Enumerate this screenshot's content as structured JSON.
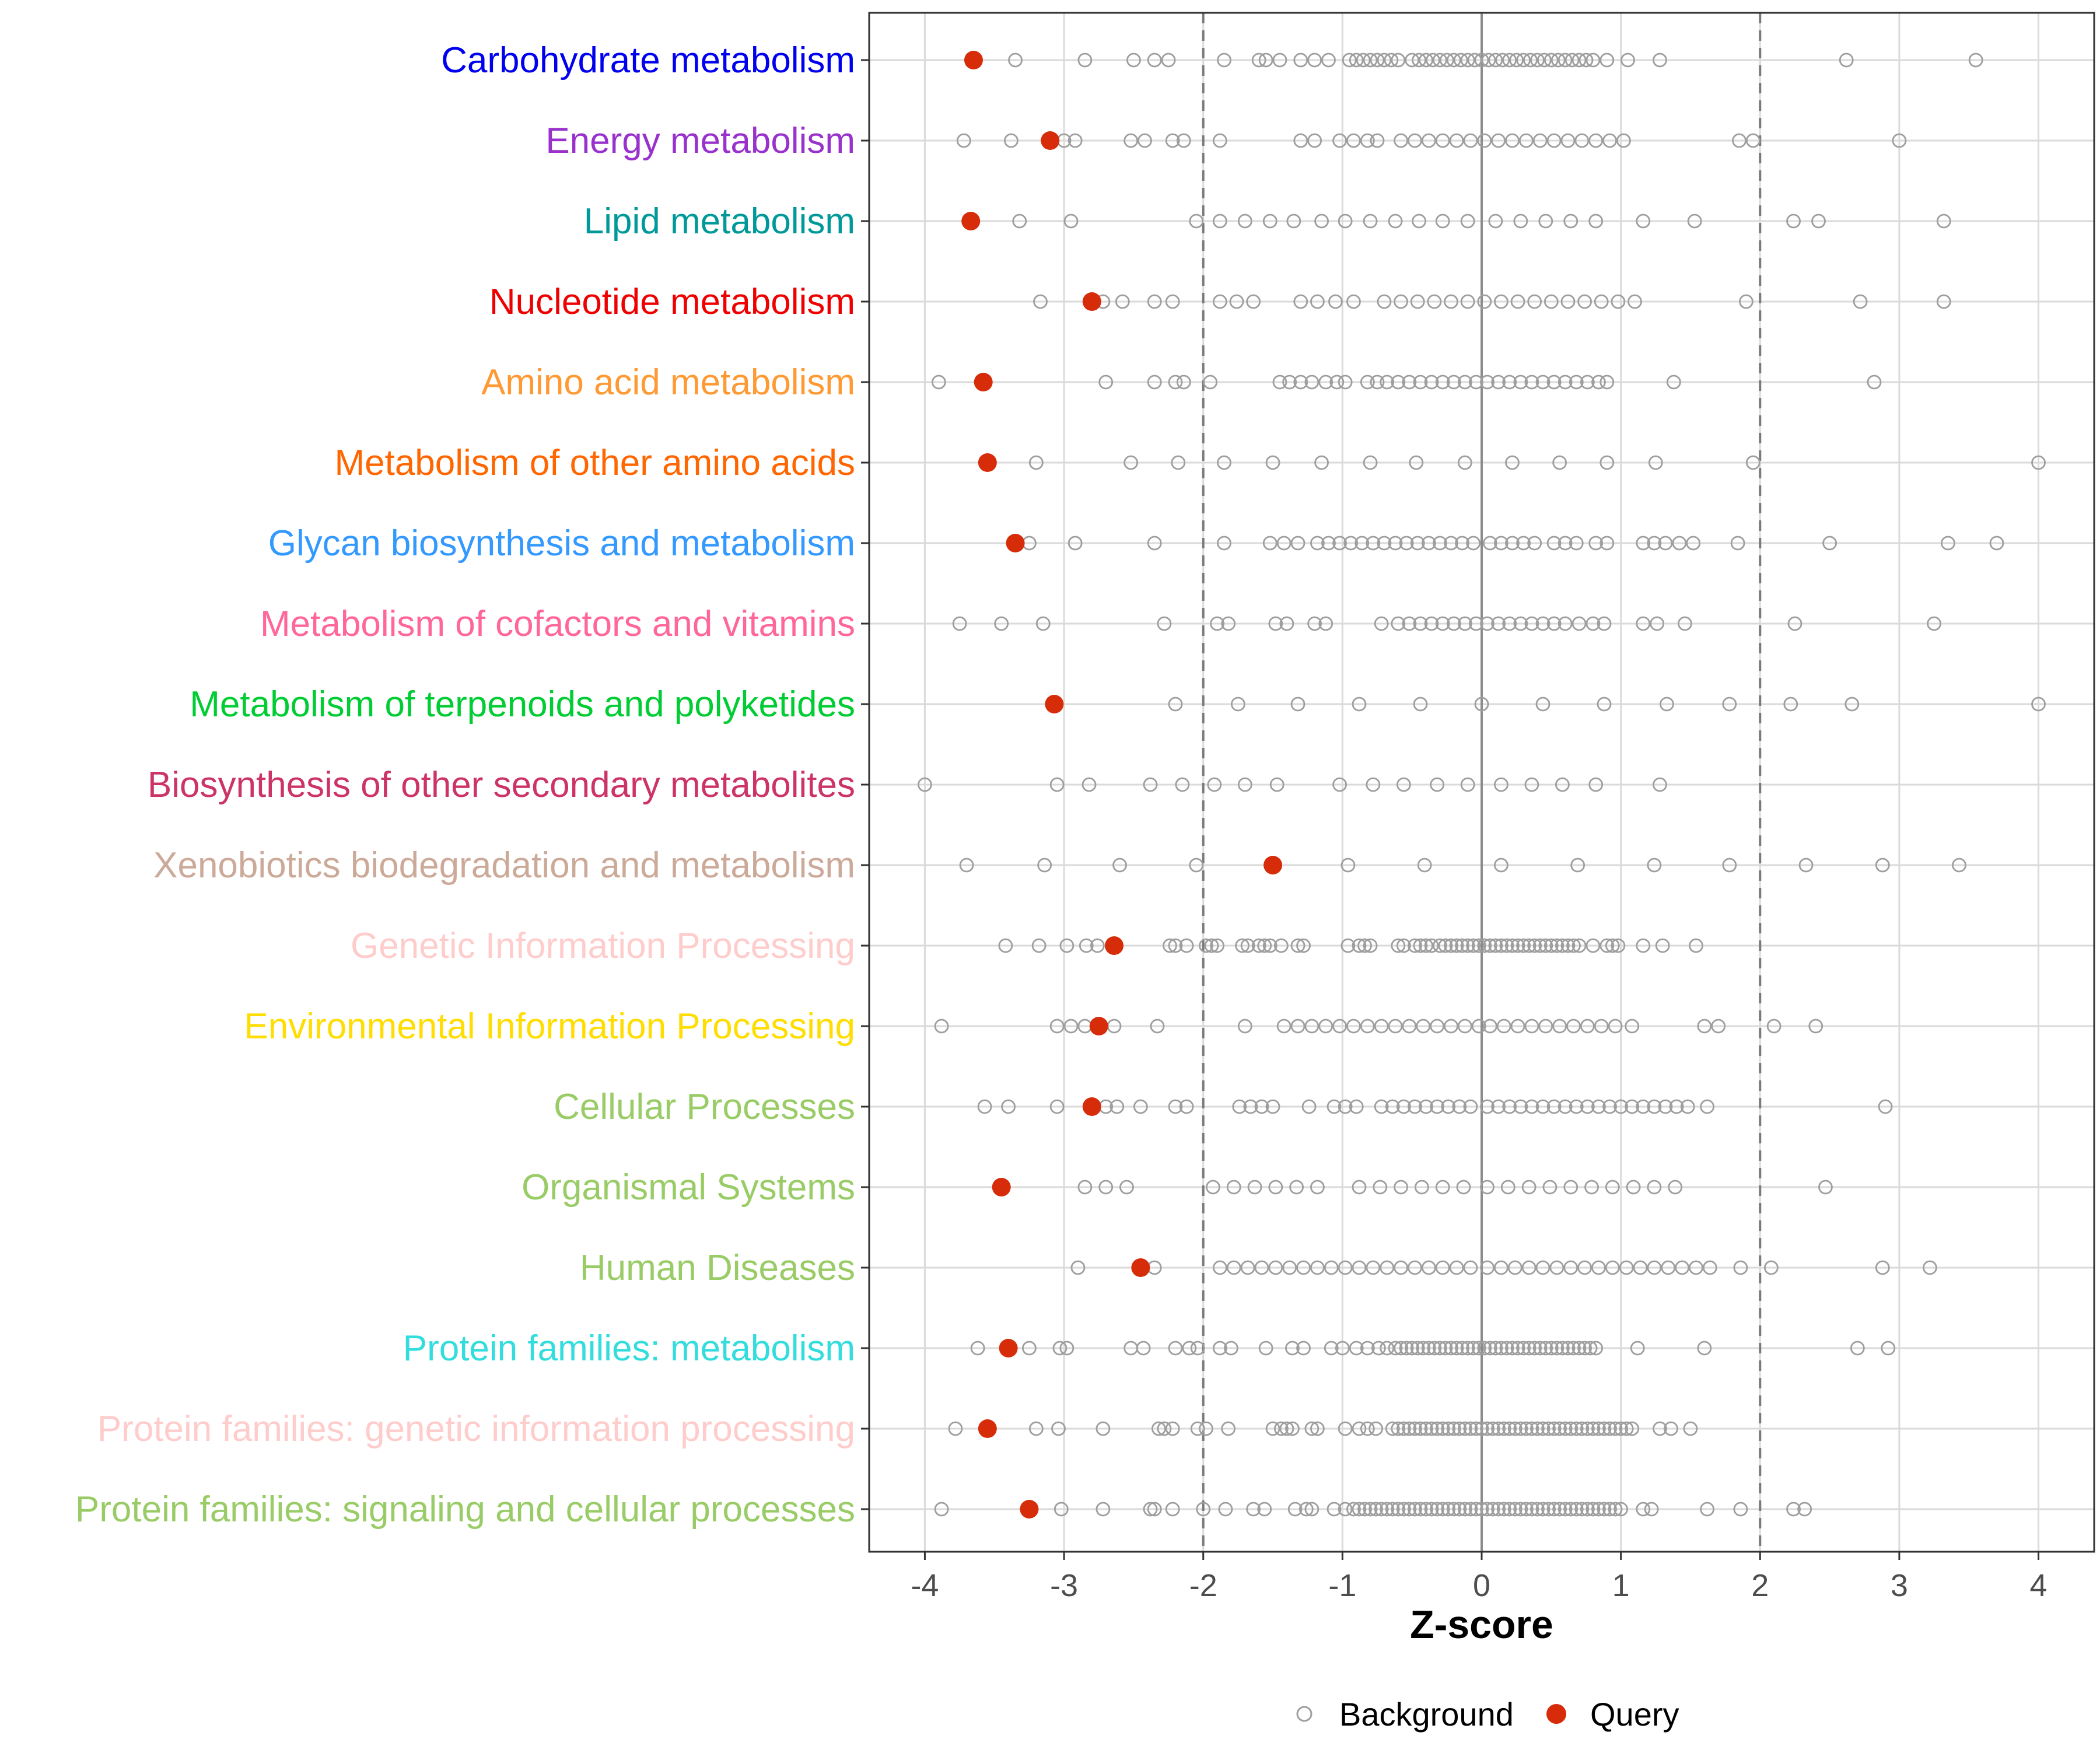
{
  "chart_data": {
    "type": "scatter",
    "xlabel": "Z-score",
    "xlim": [
      -4.4,
      4.4
    ],
    "xticks": [
      -4,
      -3,
      -2,
      -1,
      0,
      1,
      2,
      3,
      4
    ],
    "xtick_labels": [
      "-4",
      "-3",
      "-2",
      "-1",
      "0",
      "1",
      "2",
      "3",
      "4"
    ],
    "reference_lines": [
      {
        "x": -2,
        "style": "dashed"
      },
      {
        "x": 2,
        "style": "dashed"
      },
      {
        "x": 0,
        "style": "solid"
      }
    ],
    "legend": {
      "position": "bottom",
      "entries": [
        {
          "name": "Background",
          "color": "#9e9e9e",
          "marker": "open-circle"
        },
        {
          "name": "Query",
          "color": "#d62c0a",
          "marker": "filled-circle"
        }
      ]
    },
    "categories": [
      {
        "label": "Carbohydrate metabolism",
        "color": "#0000ee",
        "query": -3.65,
        "background": [
          -3.35,
          -2.85,
          -2.5,
          -2.35,
          -2.25,
          -1.85,
          -1.6,
          -1.55,
          -1.45,
          -1.3,
          -1.2,
          -1.1,
          -0.95,
          -0.9,
          -0.85,
          -0.8,
          -0.75,
          -0.7,
          -0.65,
          -0.6,
          -0.5,
          -0.45,
          -0.4,
          -0.35,
          -0.3,
          -0.25,
          -0.2,
          -0.15,
          -0.1,
          -0.05,
          0,
          0.05,
          0.1,
          0.15,
          0.2,
          0.25,
          0.3,
          0.35,
          0.4,
          0.45,
          0.5,
          0.55,
          0.6,
          0.65,
          0.7,
          0.75,
          0.8,
          0.9,
          1.05,
          1.28,
          2.62,
          3.55
        ]
      },
      {
        "label": "Energy metabolism",
        "color": "#9932cc",
        "query": -3.1,
        "background": [
          -3.72,
          -3.38,
          -3.0,
          -2.92,
          -2.52,
          -2.42,
          -2.22,
          -2.14,
          -1.88,
          -1.3,
          -1.2,
          -1.02,
          -0.92,
          -0.82,
          -0.75,
          -0.58,
          -0.48,
          -0.38,
          -0.28,
          -0.18,
          -0.08,
          0.02,
          0.12,
          0.22,
          0.32,
          0.42,
          0.52,
          0.62,
          0.72,
          0.82,
          0.92,
          1.02,
          1.85,
          1.95,
          3.0
        ]
      },
      {
        "label": "Lipid metabolism",
        "color": "#009999",
        "query": -3.67,
        "background": [
          -3.32,
          -2.95,
          -2.05,
          -1.88,
          -1.7,
          -1.52,
          -1.35,
          -1.15,
          -0.98,
          -0.8,
          -0.62,
          -0.45,
          -0.28,
          -0.1,
          0.1,
          0.28,
          0.46,
          0.64,
          0.82,
          1.16,
          1.53,
          2.24,
          2.42,
          3.32
        ]
      },
      {
        "label": "Nucleotide metabolism",
        "color": "#ee0000",
        "query": -2.8,
        "background": [
          -3.17,
          -2.72,
          -2.58,
          -2.35,
          -2.22,
          -1.88,
          -1.76,
          -1.64,
          -1.3,
          -1.18,
          -1.05,
          -0.92,
          -0.7,
          -0.58,
          -0.46,
          -0.34,
          -0.22,
          -0.1,
          0.02,
          0.14,
          0.26,
          0.38,
          0.5,
          0.62,
          0.74,
          0.86,
          0.98,
          1.1,
          1.9,
          2.72,
          3.32
        ]
      },
      {
        "label": "Amino acid metabolism",
        "color": "#ff9933",
        "query": -3.58,
        "background": [
          -3.9,
          -2.7,
          -2.35,
          -2.2,
          -2.14,
          -1.95,
          -1.45,
          -1.38,
          -1.3,
          -1.22,
          -1.12,
          -1.04,
          -0.98,
          -0.82,
          -0.75,
          -0.68,
          -0.6,
          -0.52,
          -0.44,
          -0.36,
          -0.28,
          -0.2,
          -0.12,
          -0.04,
          0.04,
          0.12,
          0.2,
          0.28,
          0.36,
          0.44,
          0.52,
          0.6,
          0.68,
          0.76,
          0.84,
          0.9,
          1.38,
          2.82
        ]
      },
      {
        "label": "Metabolism of other amino acids",
        "color": "#ff6600",
        "query": -3.55,
        "background": [
          -3.2,
          -2.52,
          -2.18,
          -1.85,
          -1.5,
          -1.15,
          -0.8,
          -0.47,
          -0.12,
          0.22,
          0.56,
          0.9,
          1.25,
          1.95,
          4.0
        ]
      },
      {
        "label": "Glycan biosynthesis and metabolism",
        "color": "#3399ff",
        "query": -3.35,
        "background": [
          -3.25,
          -2.92,
          -2.35,
          -1.85,
          -1.52,
          -1.42,
          -1.32,
          -1.18,
          -1.1,
          -1.02,
          -0.94,
          -0.86,
          -0.78,
          -0.7,
          -0.62,
          -0.54,
          -0.46,
          -0.38,
          -0.3,
          -0.22,
          -0.14,
          -0.06,
          0.06,
          0.14,
          0.22,
          0.3,
          0.38,
          0.52,
          0.6,
          0.68,
          0.82,
          0.9,
          1.16,
          1.24,
          1.32,
          1.42,
          1.52,
          1.84,
          2.5,
          3.35,
          3.7
        ]
      },
      {
        "label": "Metabolism of cofactors and vitamins",
        "color": "#ff6699",
        "query": null,
        "background": [
          -3.75,
          -3.45,
          -3.15,
          -2.28,
          -1.9,
          -1.82,
          -1.48,
          -1.4,
          -1.2,
          -1.12,
          -0.72,
          -0.6,
          -0.52,
          -0.44,
          -0.36,
          -0.28,
          -0.2,
          -0.12,
          -0.04,
          0.04,
          0.12,
          0.2,
          0.28,
          0.36,
          0.44,
          0.52,
          0.6,
          0.7,
          0.8,
          0.88,
          1.16,
          1.26,
          1.46,
          2.25,
          3.25
        ]
      },
      {
        "label": "Metabolism of terpenoids and polyketides",
        "color": "#00cc33",
        "query": -3.07,
        "background": [
          -2.2,
          -1.75,
          -1.32,
          -0.88,
          -0.44,
          0.0,
          0.44,
          0.88,
          1.33,
          1.78,
          2.22,
          2.66,
          4.0
        ]
      },
      {
        "label": "Biosynthesis of other secondary metabolites",
        "color": "#cc3366",
        "query": null,
        "background": [
          -4.0,
          -3.05,
          -2.82,
          -2.38,
          -2.15,
          -1.92,
          -1.7,
          -1.47,
          -1.02,
          -0.78,
          -0.56,
          -0.32,
          -0.1,
          0.14,
          0.36,
          0.58,
          0.82,
          1.28
        ]
      },
      {
        "label": "Xenobiotics biodegradation and metabolism",
        "color": "#ccaa99",
        "query": -1.5,
        "background": [
          -3.7,
          -3.14,
          -2.6,
          -2.05,
          -0.96,
          -0.41,
          0.14,
          0.69,
          1.24,
          1.78,
          2.33,
          2.88,
          3.43
        ]
      },
      {
        "label": "Genetic Information Processing",
        "color": "#ffcccc",
        "query": -2.64,
        "background": [
          -3.42,
          -3.18,
          -2.98,
          -2.84,
          -2.76,
          -2.24,
          -2.2,
          -2.12,
          -1.98,
          -1.94,
          -1.9,
          -1.72,
          -1.68,
          -1.6,
          -1.56,
          -1.52,
          -1.44,
          -1.32,
          -1.28,
          -0.96,
          -0.88,
          -0.84,
          -0.8,
          -0.6,
          -0.56,
          -0.48,
          -0.44,
          -0.4,
          -0.36,
          -0.3,
          -0.26,
          -0.22,
          -0.18,
          -0.14,
          -0.1,
          -0.06,
          -0.02,
          0.02,
          0.06,
          0.1,
          0.14,
          0.18,
          0.22,
          0.26,
          0.3,
          0.34,
          0.38,
          0.42,
          0.46,
          0.5,
          0.54,
          0.58,
          0.62,
          0.66,
          0.7,
          0.8,
          0.9,
          0.94,
          0.98,
          1.16,
          1.3,
          1.54
        ]
      },
      {
        "label": "Environmental Information Processing",
        "color": "#ffdd00",
        "query": -2.75,
        "background": [
          -3.88,
          -3.05,
          -2.95,
          -2.85,
          -2.64,
          -2.33,
          -1.7,
          -1.42,
          -1.32,
          -1.22,
          -1.12,
          -1.02,
          -0.92,
          -0.82,
          -0.72,
          -0.62,
          -0.52,
          -0.42,
          -0.32,
          -0.22,
          -0.12,
          -0.02,
          0.06,
          0.16,
          0.26,
          0.36,
          0.46,
          0.56,
          0.66,
          0.76,
          0.86,
          0.96,
          1.08,
          1.6,
          1.7,
          2.1,
          2.4
        ]
      },
      {
        "label": "Cellular Processes",
        "color": "#99cc66",
        "query": -2.8,
        "background": [
          -3.57,
          -3.4,
          -3.05,
          -2.7,
          -2.62,
          -2.45,
          -2.2,
          -2.12,
          -1.74,
          -1.66,
          -1.58,
          -1.5,
          -1.24,
          -1.06,
          -0.98,
          -0.9,
          -0.72,
          -0.64,
          -0.56,
          -0.48,
          -0.4,
          -0.32,
          -0.24,
          -0.16,
          -0.08,
          0.04,
          0.12,
          0.2,
          0.28,
          0.36,
          0.44,
          0.52,
          0.6,
          0.68,
          0.76,
          0.84,
          0.92,
          1.0,
          1.08,
          1.16,
          1.24,
          1.32,
          1.4,
          1.48,
          1.62,
          2.9
        ]
      },
      {
        "label": "Organismal Systems",
        "color": "#99cc66",
        "query": -3.45,
        "background": [
          -2.85,
          -2.7,
          -2.55,
          -1.93,
          -1.78,
          -1.63,
          -1.48,
          -1.33,
          -1.18,
          -0.88,
          -0.73,
          -0.58,
          -0.43,
          -0.28,
          -0.13,
          0.04,
          0.19,
          0.34,
          0.49,
          0.64,
          0.79,
          0.94,
          1.09,
          1.24,
          1.39,
          2.47
        ]
      },
      {
        "label": "Human Diseases",
        "color": "#99cc66",
        "query": -2.45,
        "background": [
          -2.9,
          -2.35,
          -1.88,
          -1.78,
          -1.68,
          -1.58,
          -1.48,
          -1.38,
          -1.28,
          -1.18,
          -1.08,
          -0.98,
          -0.88,
          -0.78,
          -0.68,
          -0.58,
          -0.48,
          -0.38,
          -0.28,
          -0.18,
          -0.08,
          0.04,
          0.14,
          0.24,
          0.34,
          0.44,
          0.54,
          0.64,
          0.74,
          0.84,
          0.94,
          1.04,
          1.14,
          1.24,
          1.34,
          1.44,
          1.54,
          1.64,
          1.86,
          2.08,
          2.88,
          3.22
        ]
      },
      {
        "label": "Protein families: metabolism",
        "color": "#33dddd",
        "query": -3.4,
        "background": [
          -3.62,
          -3.25,
          -3.03,
          -2.98,
          -2.52,
          -2.43,
          -2.2,
          -2.1,
          -2.04,
          -1.88,
          -1.8,
          -1.55,
          -1.36,
          -1.28,
          -1.08,
          -1.0,
          -0.9,
          -0.82,
          -0.74,
          -0.68,
          -0.62,
          -0.58,
          -0.54,
          -0.5,
          -0.46,
          -0.42,
          -0.38,
          -0.34,
          -0.3,
          -0.26,
          -0.22,
          -0.18,
          -0.14,
          -0.1,
          -0.06,
          -0.02,
          0.02,
          0.06,
          0.1,
          0.14,
          0.18,
          0.22,
          0.26,
          0.3,
          0.34,
          0.38,
          0.42,
          0.46,
          0.5,
          0.54,
          0.58,
          0.62,
          0.66,
          0.7,
          0.74,
          0.78,
          0.82,
          1.12,
          1.6,
          2.7,
          2.92
        ]
      },
      {
        "label": "Protein families: genetic information processing",
        "color": "#ffcccc",
        "query": -3.55,
        "background": [
          -3.78,
          -3.2,
          -3.04,
          -2.72,
          -2.32,
          -2.28,
          -2.22,
          -2.04,
          -1.98,
          -1.82,
          -1.5,
          -1.44,
          -1.4,
          -1.36,
          -1.22,
          -1.18,
          -0.98,
          -0.88,
          -0.82,
          -0.76,
          -0.64,
          -0.6,
          -0.56,
          -0.52,
          -0.48,
          -0.44,
          -0.4,
          -0.36,
          -0.32,
          -0.28,
          -0.24,
          -0.2,
          -0.16,
          -0.12,
          -0.08,
          -0.04,
          0.0,
          0.04,
          0.08,
          0.12,
          0.16,
          0.2,
          0.24,
          0.28,
          0.32,
          0.36,
          0.4,
          0.44,
          0.48,
          0.52,
          0.56,
          0.6,
          0.64,
          0.68,
          0.72,
          0.76,
          0.8,
          0.84,
          0.88,
          0.92,
          0.96,
          1.0,
          1.04,
          1.08,
          1.28,
          1.36,
          1.5
        ]
      },
      {
        "label": "Protein families: signaling and cellular processes",
        "color": "#99cc66",
        "query": -3.25,
        "background": [
          -3.88,
          -3.02,
          -2.72,
          -2.38,
          -2.35,
          -2.22,
          -2.0,
          -1.84,
          -1.64,
          -1.56,
          -1.34,
          -1.26,
          -1.22,
          -1.06,
          -0.98,
          -0.92,
          -0.88,
          -0.84,
          -0.8,
          -0.76,
          -0.72,
          -0.68,
          -0.64,
          -0.6,
          -0.56,
          -0.52,
          -0.48,
          -0.44,
          -0.4,
          -0.36,
          -0.32,
          -0.28,
          -0.24,
          -0.2,
          -0.16,
          -0.12,
          -0.08,
          -0.04,
          0.0,
          0.04,
          0.08,
          0.12,
          0.16,
          0.2,
          0.24,
          0.28,
          0.32,
          0.36,
          0.4,
          0.44,
          0.48,
          0.52,
          0.56,
          0.6,
          0.64,
          0.68,
          0.72,
          0.76,
          0.8,
          0.84,
          0.88,
          0.92,
          0.96,
          1.0,
          1.16,
          1.22,
          1.62,
          1.86,
          2.24,
          2.32
        ]
      }
    ]
  }
}
